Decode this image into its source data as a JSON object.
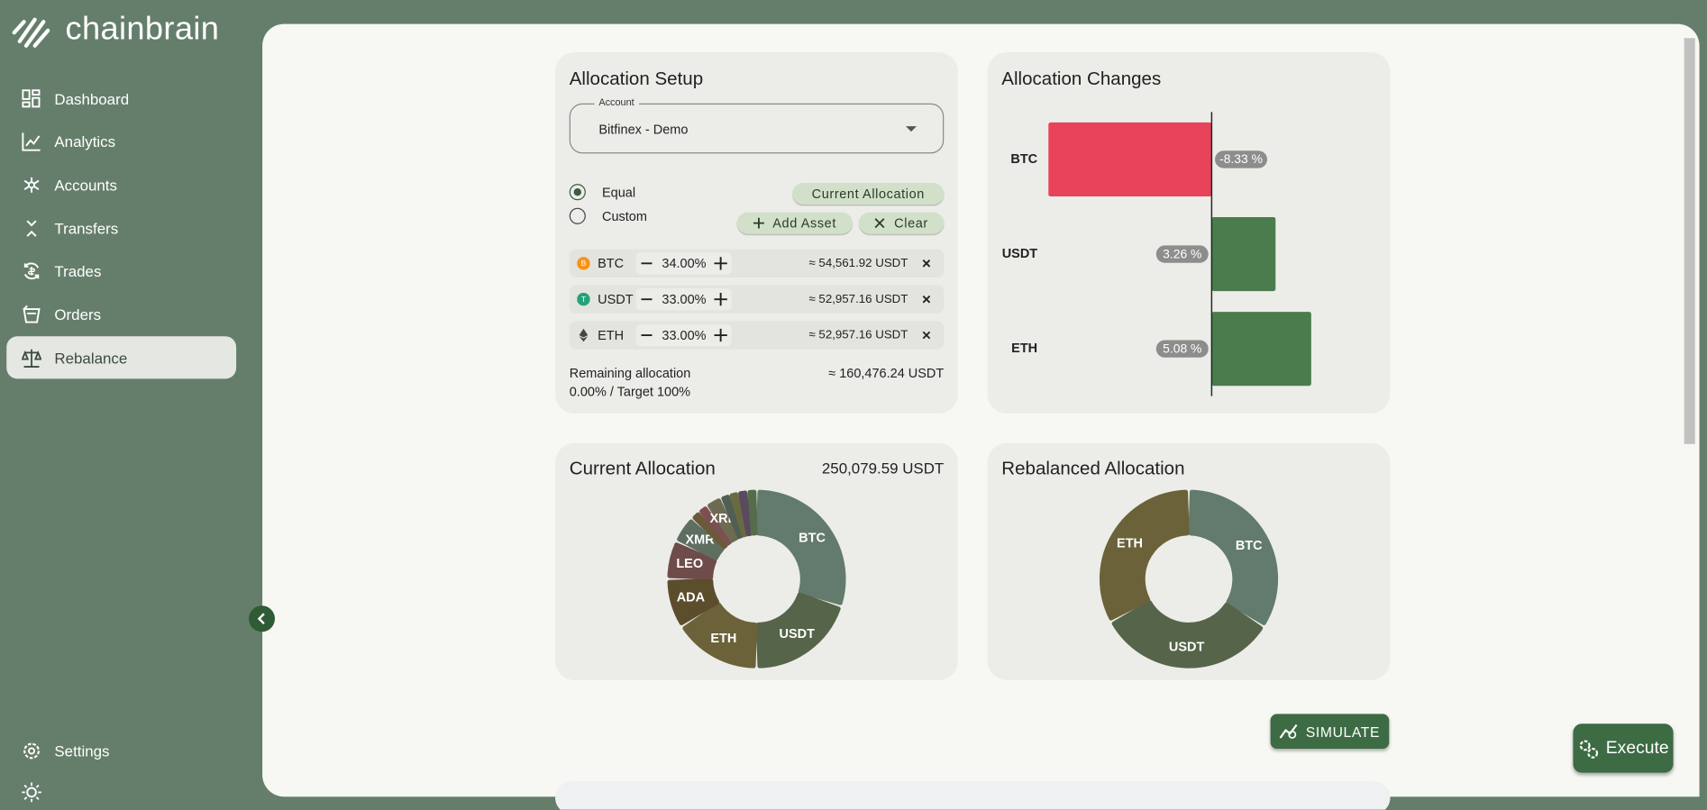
{
  "sidebar": {
    "brand": "chainbrain",
    "nav": [
      "Dashboard",
      "Analytics",
      "Accounts",
      "Transfers",
      "Trades",
      "Orders",
      "Rebalance"
    ],
    "active": "Rebalance",
    "settings": "Settings"
  },
  "allocation_setup": {
    "title": "Allocation Setup",
    "account_label": "Account",
    "account": "Bitfinex - Demo",
    "modes": [
      "Equal",
      "Custom"
    ],
    "selected_mode": "Equal",
    "buttons": [
      "Current Allocation",
      "Add Asset",
      "Clear"
    ],
    "assets": [
      {
        "symbol": "BTC",
        "percent": "34.00%",
        "amount": "≈ 54,561.92 USDT"
      },
      {
        "symbol": "USDT",
        "percent": "33.00%",
        "amount": "≈ 52,957.16 USDT"
      },
      {
        "symbol": "ETH",
        "percent": "33.00%",
        "amount": "≈ 52,957.16 USDT"
      }
    ],
    "remaining_label": "Remaining allocation",
    "remaining_status": "0.00% / Target 100%",
    "remaining_amount": "≈ 160,476.24 USDT"
  },
  "chart_data": [
    {
      "type": "bar",
      "orientation": "horizontal",
      "title": "Allocation Changes",
      "categories": [
        "BTC",
        "USDT",
        "ETH"
      ],
      "values": [
        -8.33,
        3.26,
        5.08
      ],
      "value_labels": [
        "-8.33 %",
        "3.26 %",
        "5.08 %"
      ],
      "negative_color": "#e8435a",
      "positive_color": "#4a7c4e",
      "xlim": [
        -10.5,
        8.5
      ]
    },
    {
      "type": "donut",
      "title": "Current Allocation",
      "total": "250,079.59 USDT",
      "categories": [
        "BTC",
        "USDT",
        "ETH",
        "ADA",
        "LEO",
        "XMR",
        null,
        null,
        "XRP",
        null,
        null,
        null,
        null
      ],
      "values": [
        30,
        20,
        16,
        9,
        7,
        5,
        1.7,
        1.7,
        3,
        1.6,
        1.6,
        1.7,
        1.7
      ],
      "colors": [
        "#637b6c",
        "#566449",
        "#6b6239",
        "#5c4d2d",
        "#6e4c4a",
        "#5e6e60",
        "#6b5a3a",
        "#7a5050",
        "#6f6a52",
        "#4f5f55",
        "#6a6a40",
        "#5a4a60",
        "#556b4a"
      ]
    },
    {
      "type": "donut",
      "title": "Rebalanced Allocation",
      "categories": [
        "BTC",
        "USDT",
        "ETH"
      ],
      "values": [
        34,
        33,
        33
      ],
      "colors": [
        "#637b6c",
        "#566449",
        "#6b6239"
      ]
    }
  ],
  "actions": {
    "simulate": "SIMULATE",
    "execute": "Execute"
  }
}
